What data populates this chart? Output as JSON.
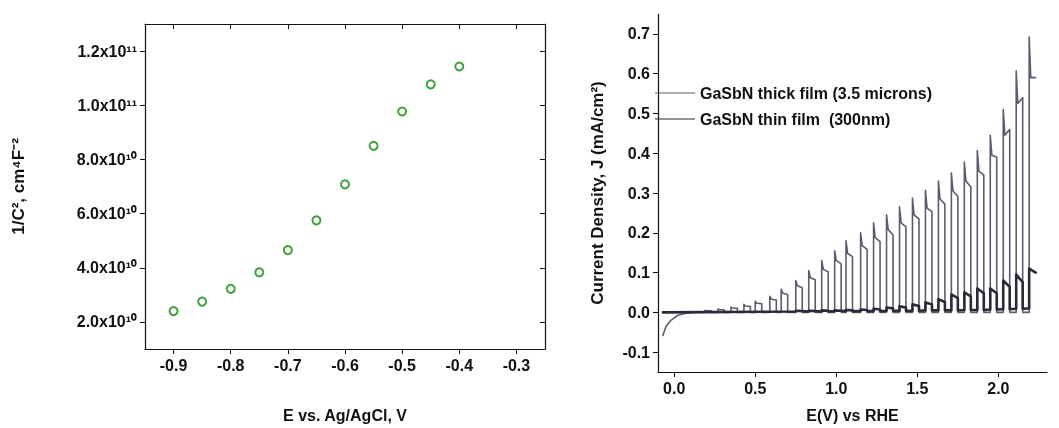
{
  "chart_data": [
    {
      "type": "scatter",
      "xlabel": "E vs. Ag/AgCl, V",
      "ylabel": "1/C², cm⁴F⁻²",
      "x": [
        -0.9,
        -0.85,
        -0.8,
        -0.75,
        -0.7,
        -0.65,
        -0.6,
        -0.55,
        -0.5,
        -0.45,
        -0.4
      ],
      "series": [
        {
          "color": "#118a11",
          "values": [
            24000000000.0,
            27500000000.0,
            32200000000.0,
            38300000000.0,
            46500000000.0,
            57500000000.0,
            70800000000.0,
            85000000000.0,
            97700000000.0,
            107700000000.0,
            114300000000.0
          ]
        }
      ],
      "xlim": [
        -0.95,
        -0.25
      ],
      "xticks": [
        -0.9,
        -0.8,
        -0.7,
        -0.6,
        -0.5,
        -0.4,
        -0.3
      ],
      "ylim": [
        10000000000.0,
        130000000000.0
      ],
      "yticks": [
        {
          "value": 20000000000.0,
          "label": "2.0x10¹⁰"
        },
        {
          "value": 40000000000.0,
          "label": "4.0x10¹⁰"
        },
        {
          "value": 60000000000.0,
          "label": "6.0x10¹⁰"
        },
        {
          "value": 80000000000.0,
          "label": "8.0x10¹⁰"
        },
        {
          "value": 100000000000.0,
          "label": "1.0x10¹¹"
        },
        {
          "value": 120000000000.0,
          "label": "1.2x10¹¹"
        }
      ],
      "grid": false,
      "legend": false,
      "marker": "circle"
    },
    {
      "type": "line",
      "xlabel": "E(V) vs RHE",
      "ylabel": "Current Density, J (mA/cm²)",
      "series": [
        {
          "name": "GaSbN thick film (3.5 microns)",
          "color": "#5c5c70",
          "x": [
            -0.07,
            -0.05,
            -0.02,
            0.02,
            0.07,
            0.13,
            0.19,
            0.19,
            0.2,
            0.23,
            0.23,
            0.27,
            0.27,
            0.28,
            0.31,
            0.31,
            0.35,
            0.35,
            0.36,
            0.39,
            0.39,
            0.43,
            0.43,
            0.44,
            0.47,
            0.47,
            0.5,
            0.5,
            0.51,
            0.54,
            0.54,
            0.59,
            0.59,
            0.6,
            0.63,
            0.63,
            0.66,
            0.66,
            0.67,
            0.7,
            0.7,
            0.75,
            0.75,
            0.76,
            0.79,
            0.79,
            0.83,
            0.83,
            0.84,
            0.87,
            0.87,
            0.91,
            0.91,
            0.92,
            0.95,
            0.95,
            0.99,
            0.99,
            1,
            1.03,
            1.03,
            1.06,
            1.06,
            1.07,
            1.1,
            1.1,
            1.15,
            1.15,
            1.16,
            1.19,
            1.19,
            1.23,
            1.23,
            1.24,
            1.27,
            1.27,
            1.31,
            1.31,
            1.32,
            1.35,
            1.35,
            1.39,
            1.39,
            1.4,
            1.43,
            1.43,
            1.47,
            1.47,
            1.48,
            1.51,
            1.51,
            1.55,
            1.55,
            1.56,
            1.59,
            1.59,
            1.63,
            1.63,
            1.64,
            1.67,
            1.67,
            1.71,
            1.71,
            1.72,
            1.75,
            1.75,
            1.79,
            1.79,
            1.8,
            1.83,
            1.83,
            1.87,
            1.87,
            1.88,
            1.91,
            1.91,
            1.95,
            1.95,
            1.96,
            1.99,
            1.99,
            2.03,
            2.03,
            2.04,
            2.07,
            2.07,
            2.11,
            2.11,
            2.12,
            2.15,
            2.15,
            2.19,
            2.19,
            2.2,
            2.23
          ],
          "values": [
            -0.058,
            -0.035,
            -0.02,
            -0.008,
            -0.002,
            0,
            0,
            0.005,
            0.004,
            0.004,
            0,
            0,
            0.008,
            0.007,
            0.006,
            0,
            0,
            0.013,
            0.011,
            0.01,
            0,
            0,
            0.02,
            0.016,
            0.015,
            0,
            0,
            0.028,
            0.023,
            0.022,
            0,
            0,
            0.04,
            0.033,
            0.031,
            0,
            0,
            0.058,
            0.048,
            0.045,
            0,
            0,
            0.08,
            0.067,
            0.062,
            0,
            0,
            0.105,
            0.087,
            0.082,
            0,
            0,
            0.13,
            0.108,
            0.102,
            0,
            0,
            0.155,
            0.13,
            0.122,
            0,
            0,
            0.18,
            0.148,
            0.14,
            0,
            0,
            0.2,
            0.168,
            0.158,
            0,
            0,
            0.225,
            0.188,
            0.178,
            0,
            0,
            0.245,
            0.208,
            0.195,
            0,
            0,
            0.265,
            0.225,
            0.215,
            0,
            0,
            0.287,
            0.245,
            0.235,
            0,
            0,
            0.307,
            0.262,
            0.253,
            0,
            0,
            0.33,
            0.285,
            0.272,
            0,
            0,
            0.35,
            0.305,
            0.292,
            0,
            0,
            0.378,
            0.33,
            0.315,
            0,
            0,
            0.407,
            0.355,
            0.345,
            0,
            0,
            0.445,
            0.395,
            0.39,
            0,
            0,
            0.51,
            0.445,
            0.46,
            0,
            0,
            0.607,
            0.525,
            0.54,
            0,
            0,
            0.692,
            0.59,
            0.59
          ]
        },
        {
          "name": "GaSbN thin film  (300nm)",
          "color": "#2a2a3a",
          "x": [
            -0.07,
            0.75,
            0.75,
            0.79,
            0.79,
            0.83,
            0.83,
            0.87,
            0.87,
            0.91,
            0.91,
            0.95,
            0.95,
            0.99,
            0.99,
            1.03,
            1.03,
            1.06,
            1.06,
            1.1,
            1.1,
            1.15,
            1.15,
            1.19,
            1.19,
            1.23,
            1.23,
            1.27,
            1.27,
            1.31,
            1.31,
            1.35,
            1.35,
            1.39,
            1.39,
            1.43,
            1.43,
            1.47,
            1.47,
            1.51,
            1.51,
            1.55,
            1.55,
            1.59,
            1.59,
            1.63,
            1.63,
            1.67,
            1.67,
            1.71,
            1.71,
            1.75,
            1.75,
            1.79,
            1.79,
            1.83,
            1.83,
            1.87,
            1.87,
            1.91,
            1.91,
            1.95,
            1.95,
            1.99,
            1.99,
            2.03,
            2.03,
            2.07,
            2.07,
            2.11,
            2.11,
            2.15,
            2.15,
            2.19,
            2.19,
            2.23
          ],
          "values": [
            0,
            0.002,
            0.004,
            0.003,
            0.002,
            0.002,
            0.004,
            0.003,
            0.002,
            0.002,
            0.005,
            0.004,
            0.002,
            0.003,
            0.005,
            0.004,
            0.003,
            0.003,
            0.006,
            0.005,
            0.003,
            0.003,
            0.007,
            0.006,
            0.003,
            0.003,
            0.009,
            0.007,
            0.003,
            0.004,
            0.012,
            0.01,
            0.004,
            0.004,
            0.015,
            0.012,
            0.004,
            0.004,
            0.02,
            0.016,
            0.004,
            0.005,
            0.025,
            0.02,
            0.005,
            0.005,
            0.033,
            0.026,
            0.005,
            0.005,
            0.045,
            0.036,
            0.005,
            0.006,
            0.05,
            0.04,
            0.006,
            0.006,
            0.06,
            0.048,
            0.006,
            0.007,
            0.06,
            0.048,
            0.007,
            0.008,
            0.08,
            0.064,
            0.008,
            0.009,
            0.095,
            0.076,
            0.009,
            0.01,
            0.11,
            0.1
          ]
        }
      ],
      "xlim": [
        -0.1,
        2.3
      ],
      "xticks": [
        {
          "value": 0,
          "label": "0.0"
        },
        0.5,
        {
          "value": 1,
          "label": "1.0"
        },
        1.5,
        {
          "value": 2,
          "label": "2.0"
        }
      ],
      "ylim": [
        -0.15,
        0.75
      ],
      "yticks": [
        -0.1,
        {
          "value": 0,
          "label": "0.0"
        },
        0.1,
        0.2,
        0.3,
        0.4,
        0.5,
        0.6,
        0.7
      ],
      "grid": false,
      "legend": "top left",
      "marker": "none",
      "line_style": "solid"
    }
  ]
}
